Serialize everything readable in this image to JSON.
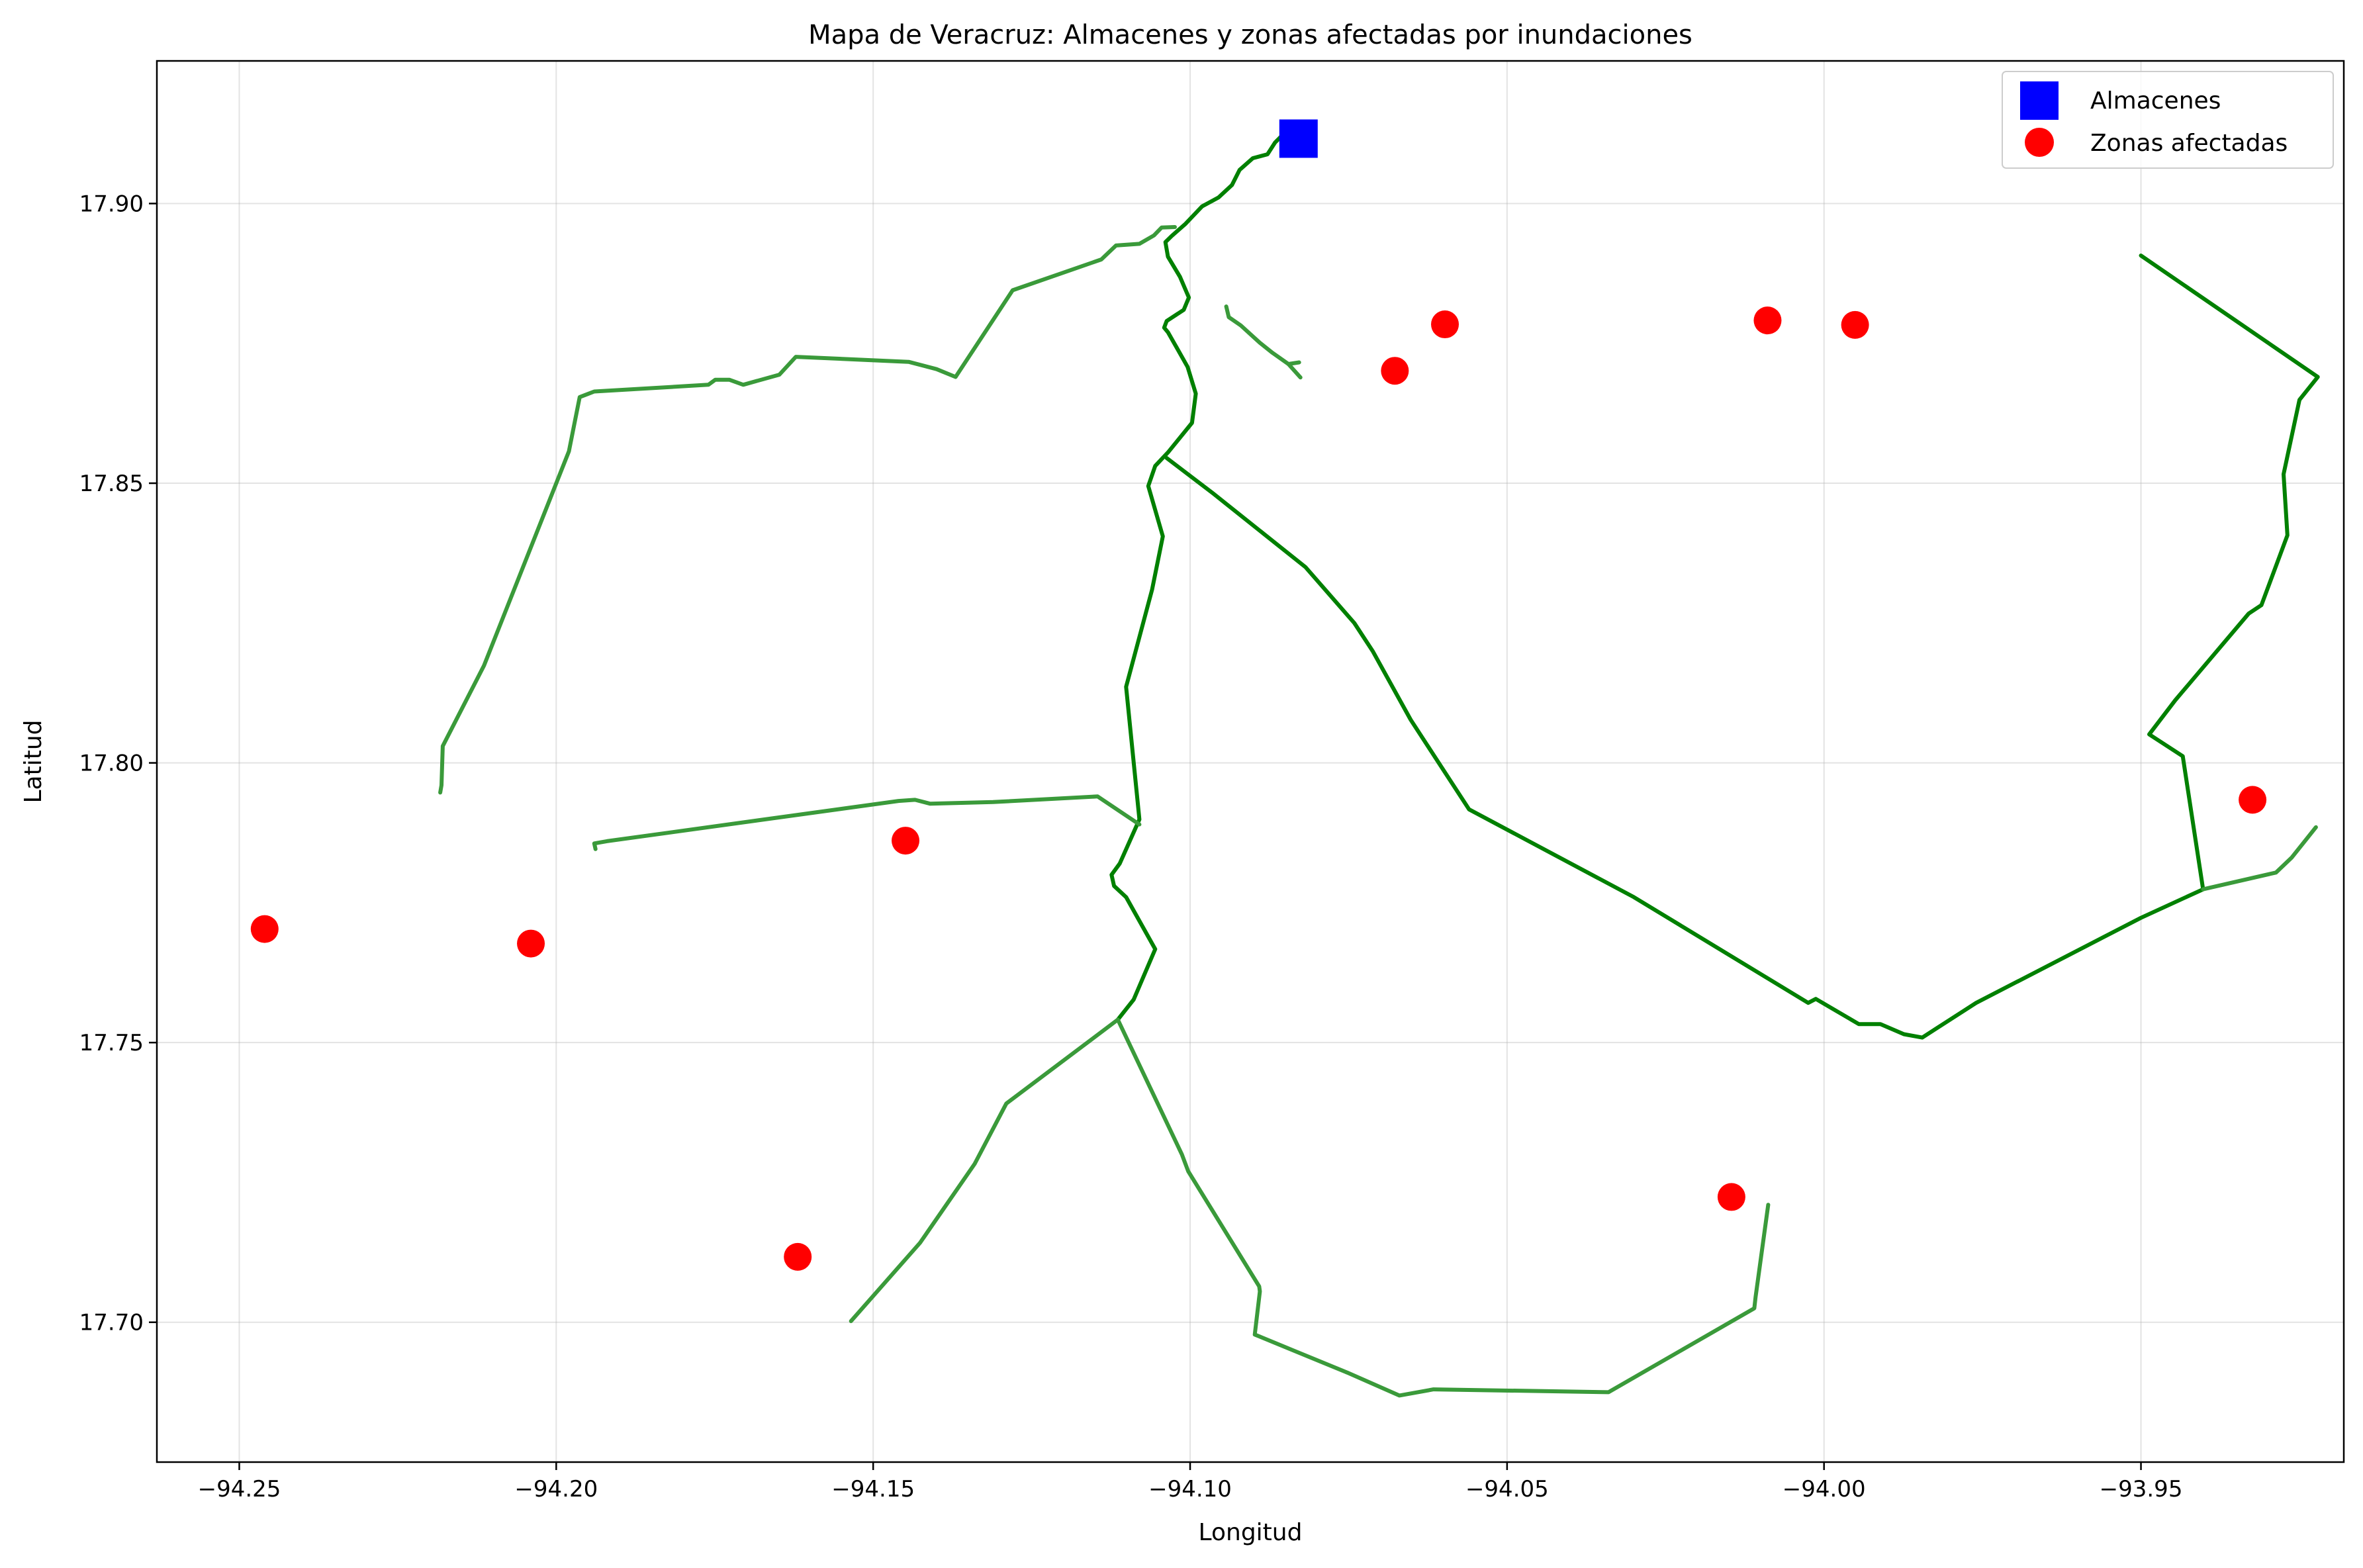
{
  "chart_data": {
    "type": "scatter",
    "title": "Mapa de Veracruz: Almacenes y zonas afectadas por inundaciones",
    "xlabel": "Longitud",
    "ylabel": "Latitud",
    "xlim": [
      -94.263,
      -93.918
    ],
    "ylim": [
      17.675,
      17.9255
    ],
    "xticks": [
      -94.25,
      -94.2,
      -94.15,
      -94.1,
      -94.05,
      -94.0,
      -93.95
    ],
    "xtick_labels": [
      "−94.25",
      "−94.20",
      "−94.15",
      "−94.10",
      "−94.05",
      "−94.00",
      "−93.95"
    ],
    "yticks": [
      17.7,
      17.75,
      17.8,
      17.85,
      17.9
    ],
    "ytick_labels": [
      "17.70",
      "17.75",
      "17.80",
      "17.85",
      "17.90"
    ],
    "grid": true,
    "legend_position": "top-right",
    "colors": {
      "warehouse": "#0000ff",
      "affected": "#ff0000",
      "road_major": "#008000",
      "road_minor": "#3a9a3a"
    },
    "series": [
      {
        "name": "Almacenes",
        "marker": "square",
        "points": [
          [
            -94.0829,
            17.9116
          ]
        ]
      },
      {
        "name": "Zonas afectadas",
        "marker": "circle",
        "points": [
          [
            -94.246,
            17.7703
          ],
          [
            -94.204,
            17.7677
          ],
          [
            -94.1449,
            17.7861
          ],
          [
            -94.1619,
            17.7117
          ],
          [
            -94.0677,
            17.8701
          ],
          [
            -94.0598,
            17.8784
          ],
          [
            -94.0089,
            17.8791
          ],
          [
            -93.9951,
            17.8783
          ],
          [
            -94.0146,
            17.7224
          ],
          [
            -93.9324,
            17.7934
          ]
        ]
      }
    ],
    "roads": [
      {
        "class": "major",
        "points": [
          [
            -94.0845,
            17.9133
          ],
          [
            -94.0866,
            17.9109
          ],
          [
            -94.0878,
            17.9088
          ],
          [
            -94.0901,
            17.9081
          ],
          [
            -94.0922,
            17.906
          ],
          [
            -94.0934,
            17.9033
          ],
          [
            -94.0955,
            17.9011
          ],
          [
            -94.0981,
            17.8995
          ],
          [
            -94.1008,
            17.8963
          ],
          [
            -94.1029,
            17.8942
          ],
          [
            -94.1039,
            17.8931
          ],
          [
            -94.1035,
            17.8905
          ],
          [
            -94.1016,
            17.8869
          ],
          [
            -94.1002,
            17.8832
          ],
          [
            -94.101,
            17.881
          ],
          [
            -94.1037,
            17.879
          ],
          [
            -94.1041,
            17.8778
          ],
          [
            -94.1035,
            17.877
          ],
          [
            -94.1022,
            17.8744
          ],
          [
            -94.1004,
            17.8708
          ],
          [
            -94.0991,
            17.866
          ],
          [
            -94.0997,
            17.8608
          ],
          [
            -94.1035,
            17.8555
          ],
          [
            -94.1055,
            17.8531
          ],
          [
            -94.1066,
            17.8495
          ],
          [
            -94.1043,
            17.8405
          ],
          [
            -94.106,
            17.831
          ],
          [
            -94.1101,
            17.8136
          ],
          [
            -94.108,
            17.7899
          ],
          [
            -94.1111,
            17.782
          ],
          [
            -94.1124,
            17.78
          ],
          [
            -94.112,
            17.778
          ],
          [
            -94.1101,
            17.776
          ],
          [
            -94.1055,
            17.7667
          ],
          [
            -94.1089,
            17.7577
          ],
          [
            -94.1114,
            17.7541
          ]
        ]
      },
      {
        "class": "major",
        "points": [
          [
            -94.1037,
            17.8545
          ],
          [
            -94.0964,
            17.8482
          ],
          [
            -94.0818,
            17.835
          ],
          [
            -94.0741,
            17.825
          ],
          [
            -94.0712,
            17.82
          ],
          [
            -94.0652,
            17.8077
          ],
          [
            -94.056,
            17.7917
          ],
          [
            -94.03,
            17.776
          ],
          [
            -94.0025,
            17.7571
          ],
          [
            -94.0013,
            17.7578
          ],
          [
            -93.9945,
            17.7533
          ],
          [
            -93.9911,
            17.7533
          ],
          [
            -93.9874,
            17.7515
          ],
          [
            -93.9845,
            17.7509
          ],
          [
            -93.976,
            17.7571
          ],
          [
            -93.95,
            17.7723
          ],
          [
            -93.9402,
            17.7774
          ]
        ]
      },
      {
        "class": "major",
        "points": [
          [
            -93.9402,
            17.7774
          ],
          [
            -93.9434,
            17.8012
          ],
          [
            -93.9487,
            17.8051
          ],
          [
            -93.9446,
            17.8112
          ],
          [
            -93.933,
            17.8267
          ],
          [
            -93.931,
            17.8282
          ],
          [
            -93.9269,
            17.8407
          ],
          [
            -93.9275,
            17.8516
          ],
          [
            -93.925,
            17.8649
          ],
          [
            -93.9221,
            17.869
          ],
          [
            -93.95,
            17.8907
          ]
        ]
      },
      {
        "class": "minor",
        "points": [
          [
            -94.2183,
            17.7947
          ],
          [
            -94.2181,
            17.796
          ],
          [
            -94.2179,
            17.803
          ],
          [
            -94.2114,
            17.8174
          ],
          [
            -94.198,
            17.8557
          ],
          [
            -94.1963,
            17.8654
          ],
          [
            -94.194,
            17.8664
          ],
          [
            -94.176,
            17.8676
          ],
          [
            -94.1749,
            17.8685
          ],
          [
            -94.1727,
            17.8685
          ],
          [
            -94.1705,
            17.8676
          ],
          [
            -94.1648,
            17.8694
          ],
          [
            -94.1622,
            17.8726
          ],
          [
            -94.1444,
            17.8717
          ],
          [
            -94.14,
            17.8704
          ],
          [
            -94.137,
            17.869
          ],
          [
            -94.128,
            17.8845
          ],
          [
            -94.114,
            17.89
          ],
          [
            -94.1117,
            17.8925
          ],
          [
            -94.108,
            17.8928
          ],
          [
            -94.1057,
            17.8943
          ],
          [
            -94.1045,
            17.8957
          ],
          [
            -94.1024,
            17.8958
          ]
        ]
      },
      {
        "class": "minor",
        "points": [
          [
            -94.0943,
            17.8816
          ],
          [
            -94.0939,
            17.8797
          ],
          [
            -94.092,
            17.8782
          ],
          [
            -94.089,
            17.8751
          ],
          [
            -94.087,
            17.8733
          ],
          [
            -94.0845,
            17.8713
          ],
          [
            -94.0828,
            17.8716
          ]
        ]
      },
      {
        "class": "minor",
        "points": [
          [
            -94.0845,
            17.8713
          ],
          [
            -94.0826,
            17.8689
          ]
        ]
      },
      {
        "class": "minor",
        "points": [
          [
            -94.1938,
            17.7846
          ],
          [
            -94.194,
            17.7856
          ],
          [
            -94.192,
            17.786
          ],
          [
            -94.146,
            17.7932
          ],
          [
            -94.1434,
            17.7934
          ],
          [
            -94.141,
            17.7927
          ],
          [
            -94.1311,
            17.793
          ],
          [
            -94.1146,
            17.794
          ],
          [
            -94.108,
            17.789
          ]
        ]
      },
      {
        "class": "minor",
        "points": [
          [
            -94.1535,
            17.7002
          ],
          [
            -94.1426,
            17.7142
          ],
          [
            -94.134,
            17.7283
          ],
          [
            -94.129,
            17.7391
          ],
          [
            -94.1114,
            17.7541
          ],
          [
            -94.1013,
            17.73
          ],
          [
            -94.1003,
            17.727
          ],
          [
            -94.0891,
            17.7064
          ],
          [
            -94.089,
            17.7055
          ],
          [
            -94.0898,
            17.6978
          ],
          [
            -94.0838,
            17.695
          ],
          [
            -94.0752,
            17.691
          ],
          [
            -94.067,
            17.6869
          ],
          [
            -94.0616,
            17.688
          ],
          [
            -94.034,
            17.6875
          ],
          [
            -94.011,
            17.7025
          ],
          [
            -94.0108,
            17.7045
          ],
          [
            -94.0088,
            17.721
          ]
        ]
      },
      {
        "class": "minor",
        "points": [
          [
            -93.9402,
            17.7774
          ],
          [
            -93.9287,
            17.7804
          ],
          [
            -93.9262,
            17.7831
          ],
          [
            -93.9224,
            17.7885
          ]
        ]
      }
    ]
  }
}
